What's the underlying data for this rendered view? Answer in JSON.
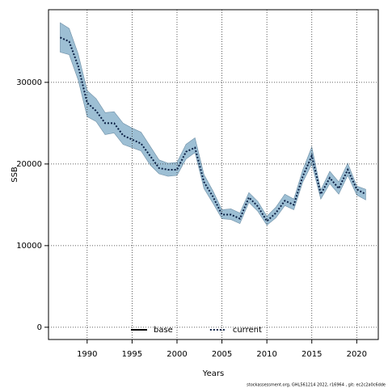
{
  "chart_data": {
    "type": "line",
    "xlabel": "Years",
    "ylabel": "SSB",
    "footer": "stockassessment.org, GHL561214 2022, r16964 , git: ec2c2a0c6dde",
    "x": [
      1987,
      1988,
      1989,
      1990,
      1991,
      1992,
      1993,
      1994,
      1995,
      1996,
      1997,
      1998,
      1999,
      2000,
      2001,
      2002,
      2003,
      2004,
      2005,
      2006,
      2007,
      2008,
      2009,
      2010,
      2011,
      2012,
      2013,
      2014,
      2015,
      2016,
      2017,
      2018,
      2019,
      2020,
      2021
    ],
    "series": [
      {
        "name": "base",
        "color": "#000000",
        "dash": "solid"
      },
      {
        "name": "current",
        "color": "#0a1f44",
        "dash": "dotted",
        "band_color": "#9dbfd4",
        "values": [
          35500,
          35000,
          32000,
          27500,
          26500,
          25000,
          25000,
          23500,
          23000,
          22500,
          21000,
          19500,
          19300,
          19300,
          21500,
          22000,
          17800,
          16000,
          13800,
          13800,
          13300,
          15900,
          14800,
          13000,
          14000,
          15500,
          15000,
          18500,
          21000,
          16300,
          18300,
          17000,
          19300,
          16900,
          16300
        ],
        "upper": [
          37300,
          36600,
          33500,
          29000,
          28000,
          26300,
          26400,
          25000,
          24400,
          23900,
          22200,
          20500,
          20100,
          20200,
          22400,
          23200,
          18700,
          16700,
          14400,
          14500,
          14000,
          16500,
          15400,
          13600,
          14700,
          16300,
          15700,
          19300,
          22100,
          16800,
          19100,
          17800,
          20100,
          17300,
          16900
        ],
        "lower": [
          33700,
          33400,
          30300,
          25800,
          25200,
          23600,
          23800,
          22400,
          22000,
          21600,
          19900,
          18800,
          18500,
          18600,
          20600,
          21400,
          17000,
          15200,
          13300,
          13200,
          12700,
          15300,
          14200,
          12500,
          13400,
          14900,
          14400,
          17800,
          20000,
          15700,
          17600,
          16300,
          18600,
          16200,
          15600
        ]
      }
    ],
    "xlim": [
      1985.7,
      2022.4
    ],
    "ylim": [
      -1500,
      38900
    ],
    "xticks": [
      1990,
      1995,
      2000,
      2005,
      2010,
      2015,
      2020
    ],
    "yticks": [
      0,
      10000,
      20000,
      30000
    ],
    "grid": true,
    "legend": "bottom"
  }
}
